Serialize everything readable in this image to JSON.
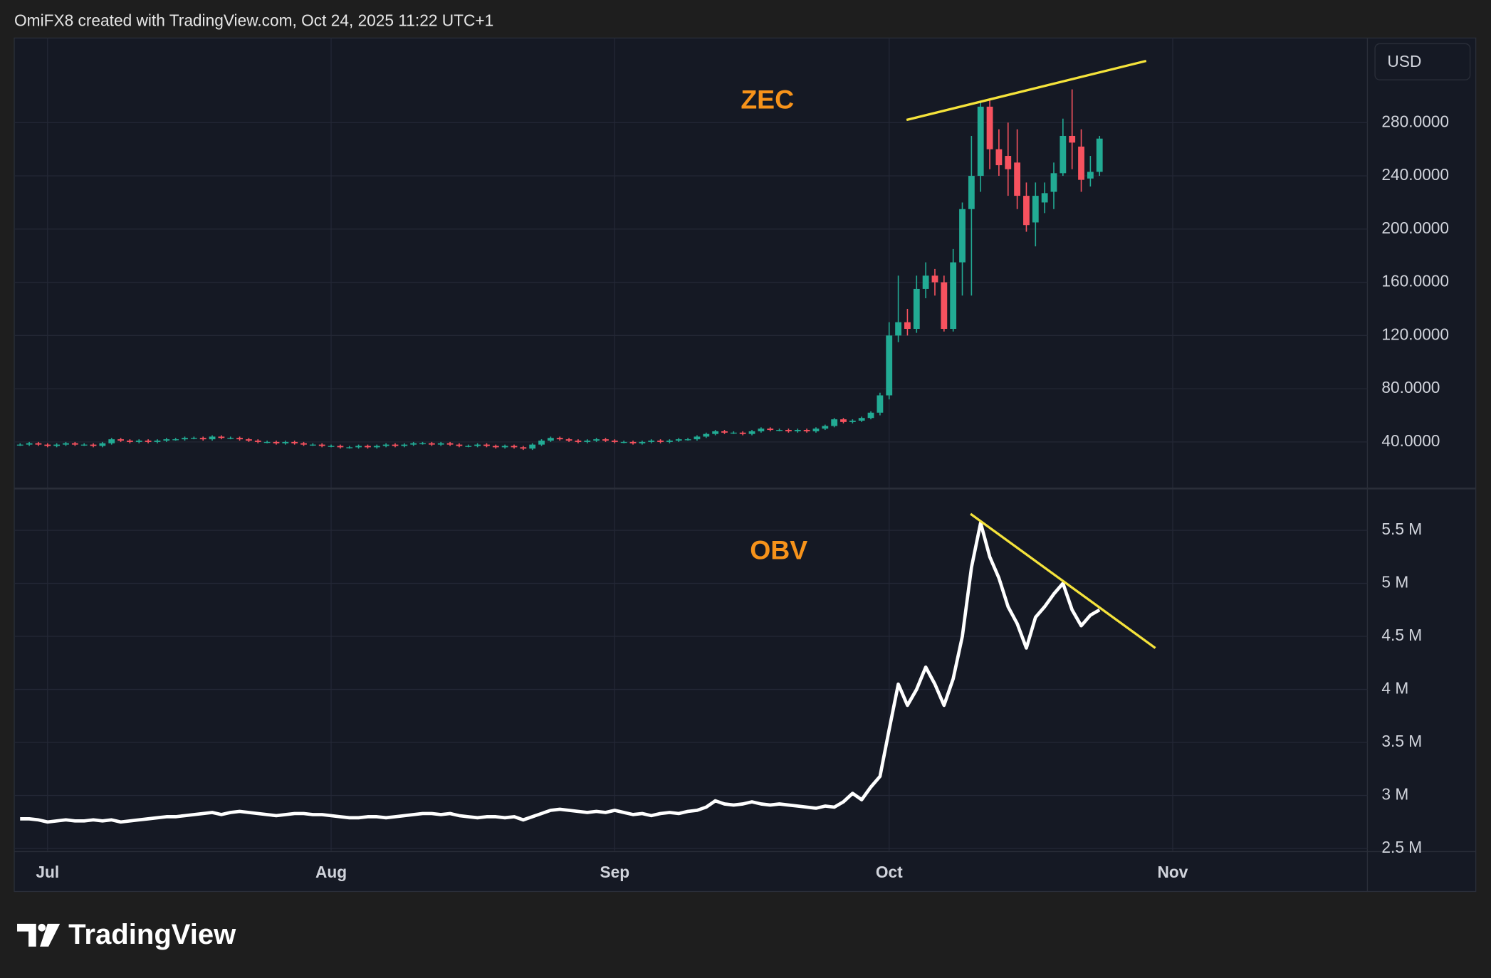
{
  "header": "OmiFX8 created with TradingView.com, Oct 24, 2025 11:22 UTC+1",
  "logo_text": "TradingView",
  "chart_data": [
    {
      "type": "candlestick",
      "annotation": "ZEC",
      "currency": "USD",
      "up_color": "#22ab94",
      "down_color": "#f7525f",
      "xlim": [
        -3.64,
        144.28
      ],
      "ylim": [
        5.7,
        343.6
      ],
      "yticks": [
        {
          "value": 40,
          "label": "40.0000"
        },
        {
          "value": 80,
          "label": "80.0000"
        },
        {
          "value": 120,
          "label": "120.0000"
        },
        {
          "value": 160,
          "label": "160.0000"
        },
        {
          "value": 200,
          "label": "200.0000"
        },
        {
          "value": 240,
          "label": "240.0000"
        },
        {
          "value": 280,
          "label": "280.0000"
        }
      ],
      "grid": true,
      "x": [
        -3,
        -2,
        -1,
        0,
        1,
        2,
        3,
        4,
        5,
        6,
        7,
        8,
        9,
        10,
        11,
        12,
        13,
        14,
        15,
        16,
        17,
        18,
        19,
        20,
        21,
        22,
        23,
        24,
        25,
        26,
        27,
        28,
        29,
        30,
        31,
        32,
        33,
        34,
        35,
        36,
        37,
        38,
        39,
        40,
        41,
        42,
        43,
        44,
        45,
        46,
        47,
        48,
        49,
        50,
        51,
        52,
        53,
        54,
        55,
        56,
        57,
        58,
        59,
        60,
        61,
        62,
        63,
        64,
        65,
        66,
        67,
        68,
        69,
        70,
        71,
        72,
        73,
        74,
        75,
        76,
        77,
        78,
        79,
        80,
        81,
        82,
        83,
        84,
        85,
        86,
        87,
        88,
        89,
        90,
        91,
        92,
        93,
        94,
        95,
        96,
        97,
        98,
        99,
        100,
        101,
        102,
        103,
        104,
        105,
        106,
        107,
        108,
        109,
        110,
        111,
        112,
        113,
        114,
        115
      ],
      "open": [
        38,
        38,
        39,
        38,
        37,
        38,
        39,
        38,
        38,
        37,
        39,
        42,
        41,
        40,
        41,
        40,
        41,
        42,
        42,
        43,
        43,
        42,
        44,
        43,
        43,
        42,
        41,
        40,
        40,
        39,
        40,
        39,
        38,
        38,
        37,
        37,
        36,
        36,
        37,
        36,
        37,
        38,
        37,
        38,
        39,
        39,
        38,
        39,
        38,
        37,
        37,
        38,
        37,
        36,
        37,
        36,
        35,
        38,
        41,
        43,
        42,
        41,
        40,
        41,
        42,
        41,
        40,
        40,
        39,
        40,
        41,
        40,
        41,
        42,
        42,
        44,
        46,
        48,
        47,
        47,
        46,
        48,
        50,
        49,
        49,
        48,
        49,
        48,
        50,
        52,
        57,
        55,
        56,
        58,
        62,
        75,
        120,
        130,
        125,
        155,
        165,
        160,
        125,
        175,
        215,
        240,
        292,
        260,
        255,
        250,
        225,
        205,
        220,
        228,
        242,
        270,
        262,
        238,
        243
      ],
      "high": [
        39,
        40,
        40,
        39,
        39,
        40,
        40,
        39,
        39,
        40,
        43,
        43,
        42,
        42,
        42,
        42,
        43,
        43,
        44,
        44,
        44,
        45,
        45,
        44,
        44,
        43,
        42,
        41,
        41,
        41,
        41,
        40,
        39,
        39,
        38,
        38,
        37,
        38,
        38,
        38,
        39,
        39,
        39,
        40,
        40,
        40,
        40,
        40,
        39,
        38,
        39,
        39,
        38,
        38,
        38,
        37,
        39,
        42,
        44,
        44,
        43,
        42,
        42,
        43,
        43,
        42,
        41,
        41,
        41,
        42,
        42,
        42,
        43,
        43,
        45,
        47,
        49,
        49,
        48,
        48,
        49,
        51,
        51,
        50,
        50,
        50,
        50,
        51,
        53,
        58,
        58,
        57,
        59,
        63,
        77,
        130,
        165,
        140,
        165,
        175,
        170,
        165,
        185,
        220,
        270,
        295,
        297,
        275,
        280,
        275,
        235,
        235,
        235,
        250,
        283,
        305,
        275,
        255,
        270
      ],
      "low": [
        37,
        37,
        37,
        36,
        36,
        37,
        37,
        37,
        36,
        36,
        38,
        40,
        39,
        39,
        39,
        39,
        40,
        41,
        41,
        42,
        41,
        41,
        42,
        42,
        41,
        40,
        39,
        39,
        38,
        38,
        38,
        37,
        37,
        36,
        36,
        35,
        35,
        35,
        35,
        35,
        36,
        36,
        36,
        37,
        38,
        37,
        37,
        37,
        36,
        36,
        36,
        36,
        35,
        35,
        35,
        34,
        34,
        37,
        40,
        41,
        40,
        39,
        39,
        40,
        40,
        39,
        39,
        38,
        38,
        39,
        39,
        39,
        40,
        41,
        41,
        43,
        45,
        46,
        46,
        45,
        45,
        47,
        48,
        48,
        47,
        47,
        47,
        47,
        49,
        51,
        54,
        54,
        55,
        57,
        60,
        72,
        115,
        120,
        122,
        148,
        150,
        123,
        123,
        150,
        150,
        228,
        245,
        240,
        225,
        215,
        198,
        187,
        212,
        215,
        240,
        245,
        228,
        232,
        240
      ],
      "close": [
        38,
        39,
        38,
        37,
        38,
        39,
        38,
        38,
        37,
        39,
        42,
        41,
        40,
        41,
        40,
        41,
        42,
        42,
        43,
        43,
        42,
        44,
        43,
        43,
        42,
        41,
        40,
        40,
        39,
        40,
        39,
        38,
        38,
        37,
        37,
        36,
        36,
        37,
        36,
        37,
        38,
        37,
        38,
        39,
        39,
        38,
        39,
        38,
        37,
        37,
        38,
        37,
        36,
        37,
        36,
        35,
        38,
        41,
        43,
        42,
        41,
        40,
        41,
        42,
        41,
        40,
        40,
        39,
        40,
        41,
        40,
        41,
        42,
        42,
        44,
        46,
        48,
        47,
        47,
        46,
        48,
        50,
        49,
        49,
        48,
        49,
        48,
        50,
        52,
        57,
        55,
        56,
        58,
        62,
        75,
        120,
        130,
        125,
        155,
        165,
        160,
        125,
        175,
        215,
        240,
        292,
        260,
        248,
        245,
        225,
        203,
        225,
        227,
        242,
        270,
        265,
        237,
        243,
        268
      ],
      "trendline": {
        "color": "#f5e33b",
        "x": [
          93.9,
          120.1
        ],
        "y": [
          282,
          326.4
        ]
      }
    },
    {
      "type": "line",
      "annotation": "OBV",
      "xlim": [
        -3.64,
        144.28
      ],
      "ylim": [
        2.48,
        5.885
      ],
      "xticks": [
        {
          "value": 0,
          "label": "Jul"
        },
        {
          "value": 31,
          "label": "Aug"
        },
        {
          "value": 62,
          "label": "Sep"
        },
        {
          "value": 92,
          "label": "Oct"
        },
        {
          "value": 123,
          "label": "Nov"
        }
      ],
      "yticks": [
        {
          "value": 2.5,
          "label": "2.5 M"
        },
        {
          "value": 3,
          "label": "3 M"
        },
        {
          "value": 3.5,
          "label": "3.5 M"
        },
        {
          "value": 4,
          "label": "4 M"
        },
        {
          "value": 4.5,
          "label": "4.5 M"
        },
        {
          "value": 5,
          "label": "5 M"
        },
        {
          "value": 5.5,
          "label": "5.5 M"
        }
      ],
      "grid": true,
      "x": [
        -3,
        -2,
        -1,
        0,
        1,
        2,
        3,
        4,
        5,
        6,
        7,
        8,
        9,
        10,
        11,
        12,
        13,
        14,
        15,
        16,
        17,
        18,
        19,
        20,
        21,
        22,
        23,
        24,
        25,
        26,
        27,
        28,
        29,
        30,
        31,
        32,
        33,
        34,
        35,
        36,
        37,
        38,
        39,
        40,
        41,
        42,
        43,
        44,
        45,
        46,
        47,
        48,
        49,
        50,
        51,
        52,
        53,
        54,
        55,
        56,
        57,
        58,
        59,
        60,
        61,
        62,
        63,
        64,
        65,
        66,
        67,
        68,
        69,
        70,
        71,
        72,
        73,
        74,
        75,
        76,
        77,
        78,
        79,
        80,
        81,
        82,
        83,
        84,
        85,
        86,
        87,
        88,
        89,
        90,
        91,
        92,
        93,
        94,
        95,
        96,
        97,
        98,
        99,
        100,
        101,
        102,
        103,
        104,
        105,
        106,
        107,
        108,
        109,
        110,
        111,
        112,
        113,
        114,
        115
      ],
      "series": [
        {
          "name": "OBV",
          "color": "#ffffff",
          "values": [
            2.78,
            2.78,
            2.77,
            2.75,
            2.76,
            2.77,
            2.76,
            2.76,
            2.77,
            2.76,
            2.77,
            2.75,
            2.76,
            2.77,
            2.78,
            2.79,
            2.8,
            2.8,
            2.81,
            2.82,
            2.83,
            2.84,
            2.82,
            2.84,
            2.85,
            2.84,
            2.83,
            2.82,
            2.81,
            2.82,
            2.83,
            2.83,
            2.82,
            2.82,
            2.81,
            2.8,
            2.79,
            2.79,
            2.8,
            2.8,
            2.79,
            2.8,
            2.81,
            2.82,
            2.83,
            2.83,
            2.82,
            2.83,
            2.81,
            2.8,
            2.79,
            2.8,
            2.8,
            2.79,
            2.8,
            2.77,
            2.8,
            2.83,
            2.86,
            2.87,
            2.86,
            2.85,
            2.84,
            2.85,
            2.84,
            2.86,
            2.84,
            2.82,
            2.83,
            2.81,
            2.83,
            2.84,
            2.83,
            2.85,
            2.86,
            2.89,
            2.95,
            2.92,
            2.91,
            2.92,
            2.94,
            2.92,
            2.91,
            2.92,
            2.91,
            2.9,
            2.89,
            2.88,
            2.9,
            2.89,
            2.94,
            3.02,
            2.96,
            3.08,
            3.18,
            3.62,
            4.05,
            3.85,
            4.0,
            4.21,
            4.05,
            3.85,
            4.1,
            4.5,
            5.15,
            5.57,
            5.25,
            5.05,
            4.78,
            4.62,
            4.39,
            4.68,
            4.78,
            4.9,
            5.0,
            4.75,
            4.6,
            4.7,
            4.75
          ]
        }
      ],
      "trendline": {
        "color": "#f5e33b",
        "x": [
          100.9,
          121.1
        ],
        "y": [
          5.655,
          4.39
        ]
      }
    }
  ]
}
